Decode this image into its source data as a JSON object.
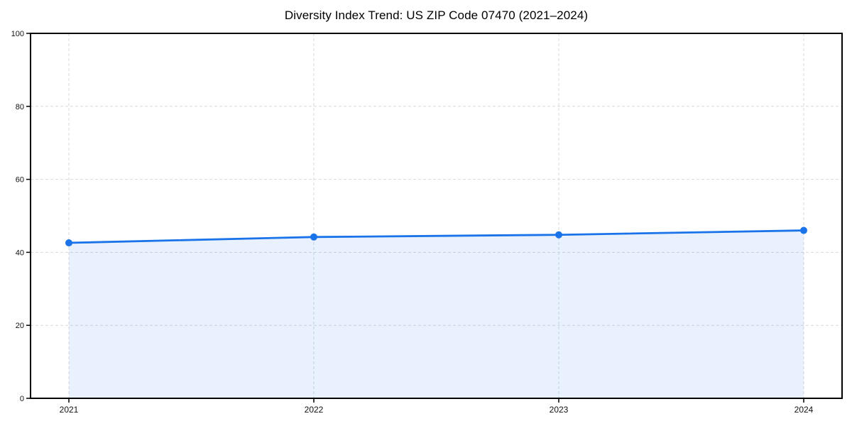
{
  "chart_data": {
    "type": "area",
    "title": "Diversity Index Trend: US ZIP Code 07470 (2021–2024)",
    "categories": [
      "2021",
      "2022",
      "2023",
      "2024"
    ],
    "series": [
      {
        "name": "Diversity Index",
        "values": [
          42.6,
          44.2,
          44.8,
          46.0
        ]
      }
    ],
    "xlabel": "",
    "ylabel": "",
    "ylim": [
      0,
      100
    ],
    "yticks": [
      0,
      20,
      40,
      60,
      80,
      100
    ],
    "grid": true,
    "grid_style": "dashed",
    "legend": "none",
    "marker": "circle",
    "colors": {
      "line": "#1a73e8",
      "marker": "#1a73e8",
      "fill": "#1a73e8",
      "fill_opacity": 0.1,
      "grid": "#d9d9d9",
      "axis": "#000000",
      "tick_label": "#111111",
      "background": "#ffffff"
    }
  }
}
